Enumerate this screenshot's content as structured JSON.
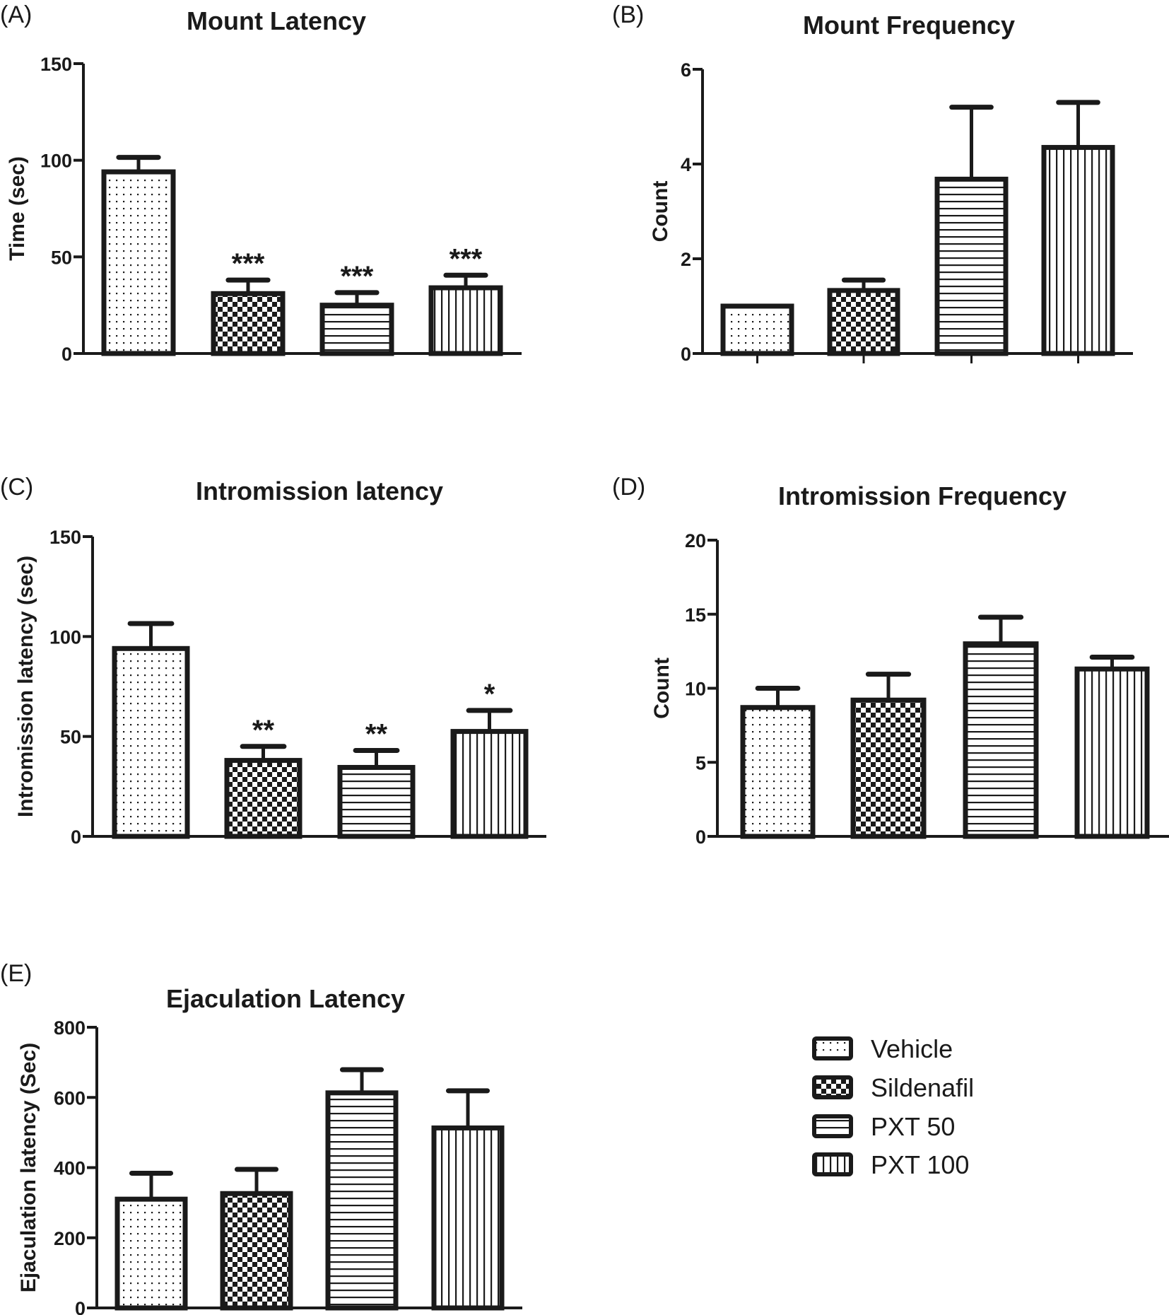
{
  "groups": [
    "Vehicle",
    "Sildenafil",
    "PXT 50",
    "PXT 100"
  ],
  "colors": {
    "ink": "#1a1a1a",
    "background": "#ffffff"
  },
  "legend": {
    "items": [
      {
        "label": "Vehicle",
        "pattern": "dots"
      },
      {
        "label": "Sildenafil",
        "pattern": "checker"
      },
      {
        "label": "PXT 50",
        "pattern": "horizontal-lines"
      },
      {
        "label": "PXT 100",
        "pattern": "vertical-lines"
      }
    ]
  },
  "chart_data": [
    {
      "panel": "(A)",
      "type": "bar",
      "title": "Mount Latency",
      "xlabel": "",
      "ylabel": "Time (sec)",
      "ylim": [
        0,
        150
      ],
      "yticks": [
        0,
        50,
        100,
        150
      ],
      "categories": [
        "Vehicle",
        "Sildenafil",
        "PXT 50",
        "PXT 100"
      ],
      "values": [
        94,
        31,
        25,
        34
      ],
      "error_upper": [
        101.5,
        38,
        31.5,
        40.5
      ],
      "significance": [
        "",
        "***",
        "***",
        "***"
      ],
      "x_ticks_visible": false
    },
    {
      "panel": "(B)",
      "type": "bar",
      "title": "Mount Frequency",
      "xlabel": "",
      "ylabel": "Count",
      "ylim": [
        0,
        6
      ],
      "yticks": [
        0,
        2,
        4,
        6
      ],
      "categories": [
        "Vehicle",
        "Sildenafil",
        "PXT 50",
        "PXT 100"
      ],
      "values": [
        1.0,
        1.33,
        3.68,
        4.35
      ],
      "error_upper": [
        1.0,
        1.55,
        5.2,
        5.3
      ],
      "significance": [
        "",
        "",
        "",
        ""
      ],
      "x_ticks_visible": true
    },
    {
      "panel": "(C)",
      "type": "bar",
      "title": "Intromission latency",
      "xlabel": "",
      "ylabel": "Intromission latency (sec)",
      "ylim": [
        0,
        150
      ],
      "yticks": [
        0,
        50,
        100,
        150
      ],
      "categories": [
        "Vehicle",
        "Sildenafil",
        "PXT 50",
        "PXT 100"
      ],
      "values": [
        94,
        38,
        34.5,
        52.5
      ],
      "error_upper": [
        106.5,
        45,
        43,
        63
      ],
      "significance": [
        "",
        "**",
        "**",
        "*"
      ],
      "x_ticks_visible": false
    },
    {
      "panel": "(D)",
      "type": "bar",
      "title": "Intromission Frequency",
      "xlabel": "",
      "ylabel": "Count",
      "ylim": [
        0,
        20
      ],
      "yticks": [
        0,
        5,
        10,
        15,
        20
      ],
      "categories": [
        "Vehicle",
        "Sildenafil",
        "PXT 50",
        "PXT 100"
      ],
      "values": [
        8.7,
        9.2,
        13.0,
        11.3
      ],
      "error_upper": [
        10.0,
        10.95,
        14.8,
        12.1
      ],
      "significance": [
        "",
        "",
        "",
        ""
      ],
      "x_ticks_visible": false
    },
    {
      "panel": "(E)",
      "type": "bar",
      "title": "Ejaculation Latency",
      "xlabel": "",
      "ylabel": "Ejaculation latency (Sec)",
      "ylim": [
        0,
        800
      ],
      "yticks": [
        0,
        200,
        400,
        600,
        800
      ],
      "categories": [
        "Vehicle",
        "Sildenafil",
        "PXT 50",
        "PXT 100"
      ],
      "values": [
        310,
        326,
        613,
        513
      ],
      "error_upper": [
        384,
        395,
        679,
        619
      ],
      "significance": [
        "",
        "",
        "",
        ""
      ],
      "x_ticks_visible": false
    }
  ]
}
